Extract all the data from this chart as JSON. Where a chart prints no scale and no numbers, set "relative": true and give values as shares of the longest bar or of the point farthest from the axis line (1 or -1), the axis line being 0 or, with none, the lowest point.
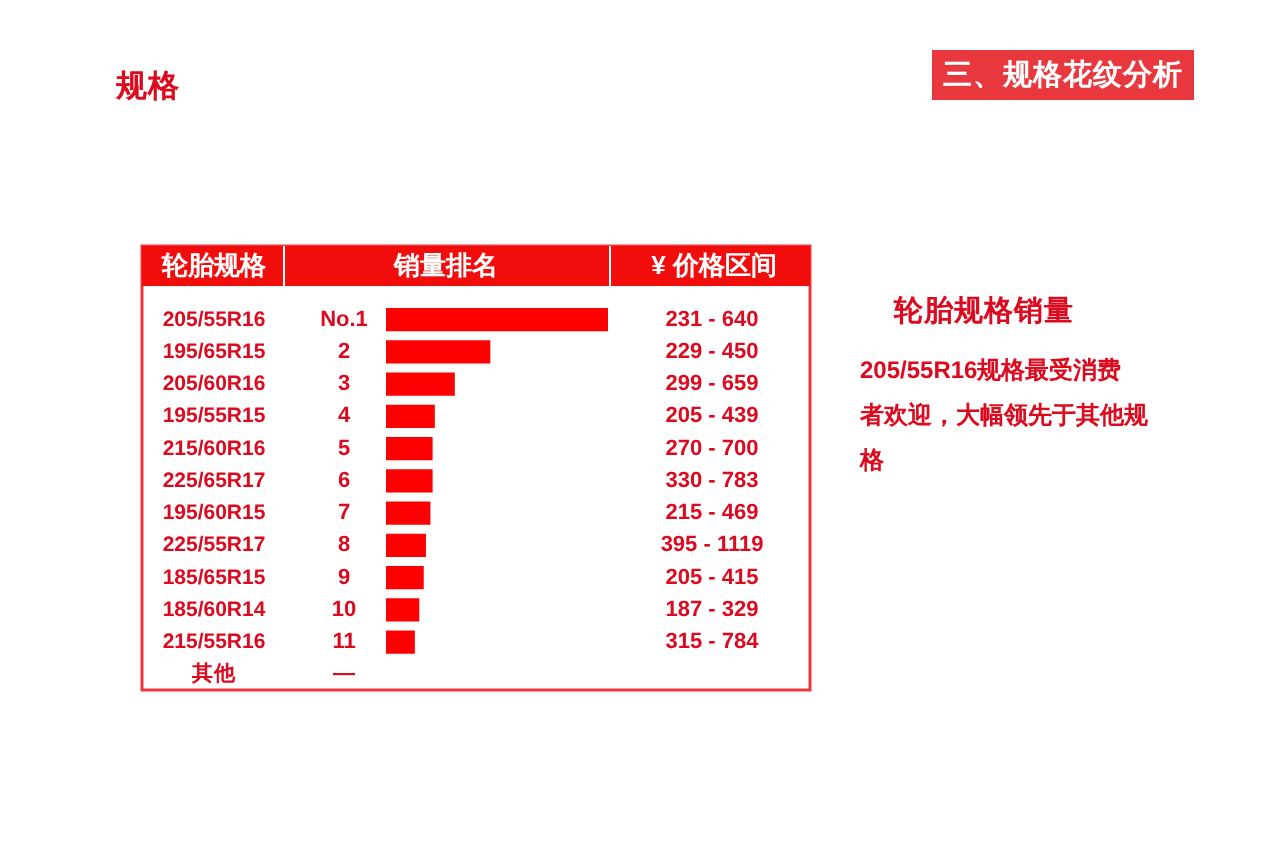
{
  "chart_data": {
    "type": "bar",
    "orientation": "horizontal",
    "relative": true,
    "title": "规格",
    "xlabel": "销量排名",
    "ylabel": "轮胎规格",
    "categories": [
      "205/55R16",
      "195/65R15",
      "205/60R16",
      "195/55R15",
      "215/60R16",
      "225/65R17",
      "195/60R15",
      "225/55R17",
      "185/65R15",
      "185/60R14",
      "215/55R16",
      "其他"
    ],
    "series": [
      {
        "color": "#ff0000",
        "values": [
          1,
          0.47,
          0.31,
          0.22,
          0.21,
          0.21,
          0.2,
          0.18,
          0.17,
          0.15,
          0.13,
          null
        ]
      }
    ],
    "annotations": [
      "三、规格花纹分析",
      "¥ 价格区间",
      "轮胎规格销量",
      "205/55R16规格最受消费者欢迎，大幅领先于其他规格",
      "No.1",
      "2",
      "3",
      "4",
      "5",
      "6",
      "7",
      "8",
      "9",
      "10",
      "11",
      "—",
      "231 - 640",
      "229 - 450",
      "299 - 659",
      "205 - 439",
      "270 - 700",
      "330 - 783",
      "215 - 469",
      "395 - 1119",
      "205 - 415",
      "187 - 329",
      "315 - 784"
    ]
  }
}
